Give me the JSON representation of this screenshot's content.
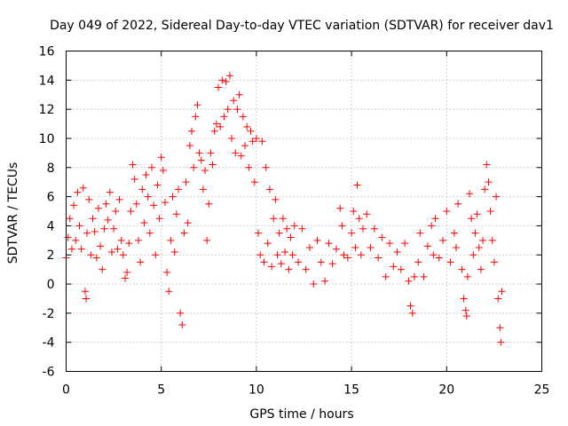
{
  "chart_data": {
    "type": "scatter",
    "title": "Day 049 of 2022, Sidereal Day-to-day VTEC variation (SDTVAR) for receiver dav1",
    "xlabel": "GPS time / hours",
    "ylabel": "SDTVAR / TECUs",
    "xlim": [
      0,
      25
    ],
    "ylim": [
      -6,
      16
    ],
    "xticks": [
      0,
      5,
      10,
      15,
      20,
      25
    ],
    "yticks": [
      -6,
      -4,
      -2,
      0,
      2,
      4,
      6,
      8,
      10,
      12,
      14,
      16
    ],
    "xtick_labels": [
      "0",
      "5",
      "10",
      "15",
      "20",
      "25"
    ],
    "ytick_labels": [
      "-6",
      "-4",
      "-2",
      "0",
      "2",
      "4",
      "6",
      "8",
      "10",
      "12",
      "14",
      "16"
    ],
    "grid": true,
    "marker": "+",
    "color": "#ff0000",
    "series": [
      {
        "name": "SDTVAR",
        "points": [
          [
            0.0,
            1.8
          ],
          [
            0.1,
            3.2
          ],
          [
            0.2,
            4.5
          ],
          [
            0.3,
            2.4
          ],
          [
            0.4,
            5.4
          ],
          [
            0.5,
            3.0
          ],
          [
            0.6,
            6.3
          ],
          [
            0.7,
            4.0
          ],
          [
            0.8,
            2.4
          ],
          [
            0.9,
            6.6
          ],
          [
            1.0,
            -0.5
          ],
          [
            1.05,
            -1.0
          ],
          [
            1.1,
            3.5
          ],
          [
            1.2,
            5.8
          ],
          [
            1.3,
            2.0
          ],
          [
            1.4,
            4.5
          ],
          [
            1.5,
            3.6
          ],
          [
            1.6,
            1.8
          ],
          [
            1.7,
            5.2
          ],
          [
            1.8,
            2.6
          ],
          [
            1.9,
            1.0
          ],
          [
            2.0,
            3.8
          ],
          [
            2.1,
            5.5
          ],
          [
            2.2,
            4.4
          ],
          [
            2.3,
            6.3
          ],
          [
            2.4,
            2.2
          ],
          [
            2.5,
            3.8
          ],
          [
            2.6,
            5.0
          ],
          [
            2.7,
            2.4
          ],
          [
            2.8,
            5.8
          ],
          [
            2.9,
            3.0
          ],
          [
            3.0,
            2.0
          ],
          [
            3.1,
            0.4
          ],
          [
            3.2,
            0.8
          ],
          [
            3.3,
            2.8
          ],
          [
            3.4,
            5.0
          ],
          [
            3.5,
            8.2
          ],
          [
            3.6,
            7.2
          ],
          [
            3.7,
            5.5
          ],
          [
            3.8,
            3.0
          ],
          [
            3.9,
            1.5
          ],
          [
            4.0,
            6.5
          ],
          [
            4.1,
            4.2
          ],
          [
            4.2,
            7.5
          ],
          [
            4.3,
            6.0
          ],
          [
            4.4,
            3.5
          ],
          [
            4.5,
            8.0
          ],
          [
            4.6,
            5.4
          ],
          [
            4.7,
            2.0
          ],
          [
            4.8,
            6.8
          ],
          [
            4.9,
            4.5
          ],
          [
            5.0,
            8.7
          ],
          [
            5.1,
            7.8
          ],
          [
            5.2,
            5.6
          ],
          [
            5.3,
            0.8
          ],
          [
            5.4,
            -0.5
          ],
          [
            5.5,
            3.0
          ],
          [
            5.6,
            6.0
          ],
          [
            5.7,
            2.2
          ],
          [
            5.8,
            4.8
          ],
          [
            5.9,
            6.5
          ],
          [
            6.0,
            -2.0
          ],
          [
            6.1,
            -2.8
          ],
          [
            6.2,
            3.5
          ],
          [
            6.3,
            7.0
          ],
          [
            6.4,
            4.2
          ],
          [
            6.5,
            9.5
          ],
          [
            6.6,
            10.5
          ],
          [
            6.7,
            8.0
          ],
          [
            6.8,
            11.5
          ],
          [
            6.9,
            12.3
          ],
          [
            7.0,
            9.0
          ],
          [
            7.1,
            8.5
          ],
          [
            7.2,
            6.5
          ],
          [
            7.3,
            7.8
          ],
          [
            7.4,
            3.0
          ],
          [
            7.5,
            5.5
          ],
          [
            7.6,
            9.0
          ],
          [
            7.7,
            8.2
          ],
          [
            7.8,
            10.5
          ],
          [
            7.9,
            11.0
          ],
          [
            8.0,
            13.5
          ],
          [
            8.1,
            10.8
          ],
          [
            8.2,
            14.0
          ],
          [
            8.3,
            11.5
          ],
          [
            8.4,
            13.9
          ],
          [
            8.5,
            12.0
          ],
          [
            8.6,
            14.3
          ],
          [
            8.7,
            10.0
          ],
          [
            8.8,
            12.6
          ],
          [
            8.9,
            9.0
          ],
          [
            9.0,
            12.0
          ],
          [
            9.1,
            13.0
          ],
          [
            9.2,
            8.8
          ],
          [
            9.3,
            11.5
          ],
          [
            9.4,
            9.5
          ],
          [
            9.5,
            10.8
          ],
          [
            9.6,
            8.0
          ],
          [
            9.7,
            10.5
          ],
          [
            9.8,
            9.8
          ],
          [
            9.9,
            7.0
          ],
          [
            10.0,
            10.0
          ],
          [
            10.1,
            3.5
          ],
          [
            10.2,
            2.0
          ],
          [
            10.3,
            9.8
          ],
          [
            10.4,
            1.5
          ],
          [
            10.5,
            8.0
          ],
          [
            10.6,
            2.8
          ],
          [
            10.7,
            6.5
          ],
          [
            10.8,
            1.2
          ],
          [
            10.9,
            4.5
          ],
          [
            11.0,
            5.8
          ],
          [
            11.1,
            2.0
          ],
          [
            11.2,
            3.5
          ],
          [
            11.3,
            1.4
          ],
          [
            11.4,
            4.5
          ],
          [
            11.5,
            2.2
          ],
          [
            11.6,
            3.8
          ],
          [
            11.7,
            1.0
          ],
          [
            11.8,
            3.2
          ],
          [
            11.9,
            2.0
          ],
          [
            12.0,
            4.0
          ],
          [
            12.2,
            1.5
          ],
          [
            12.4,
            3.8
          ],
          [
            12.6,
            1.0
          ],
          [
            12.8,
            2.5
          ],
          [
            13.0,
            0.0
          ],
          [
            13.2,
            3.0
          ],
          [
            13.4,
            1.5
          ],
          [
            13.6,
            0.2
          ],
          [
            13.8,
            2.8
          ],
          [
            14.0,
            1.4
          ],
          [
            14.2,
            2.4
          ],
          [
            14.4,
            5.2
          ],
          [
            14.5,
            4.0
          ],
          [
            14.6,
            2.0
          ],
          [
            14.8,
            1.8
          ],
          [
            15.0,
            3.5
          ],
          [
            15.1,
            5.0
          ],
          [
            15.2,
            2.5
          ],
          [
            15.3,
            6.8
          ],
          [
            15.4,
            4.5
          ],
          [
            15.5,
            2.0
          ],
          [
            15.6,
            3.8
          ],
          [
            15.8,
            4.8
          ],
          [
            16.0,
            2.5
          ],
          [
            16.2,
            3.8
          ],
          [
            16.4,
            1.8
          ],
          [
            16.6,
            3.2
          ],
          [
            16.8,
            0.5
          ],
          [
            17.0,
            2.8
          ],
          [
            17.2,
            1.2
          ],
          [
            17.4,
            2.2
          ],
          [
            17.6,
            1.0
          ],
          [
            17.8,
            2.8
          ],
          [
            18.0,
            0.2
          ],
          [
            18.1,
            -1.5
          ],
          [
            18.2,
            -2.0
          ],
          [
            18.3,
            0.5
          ],
          [
            18.5,
            1.5
          ],
          [
            18.6,
            3.5
          ],
          [
            18.8,
            0.5
          ],
          [
            19.0,
            2.6
          ],
          [
            19.2,
            4.0
          ],
          [
            19.3,
            2.0
          ],
          [
            19.4,
            4.5
          ],
          [
            19.6,
            1.8
          ],
          [
            19.8,
            3.0
          ],
          [
            20.0,
            5.0
          ],
          [
            20.2,
            1.5
          ],
          [
            20.4,
            3.5
          ],
          [
            20.5,
            2.5
          ],
          [
            20.6,
            5.5
          ],
          [
            20.8,
            1.0
          ],
          [
            20.9,
            -1.0
          ],
          [
            21.0,
            -1.8
          ],
          [
            21.05,
            -2.2
          ],
          [
            21.1,
            0.5
          ],
          [
            21.2,
            6.2
          ],
          [
            21.3,
            4.5
          ],
          [
            21.4,
            2.0
          ],
          [
            21.5,
            3.5
          ],
          [
            21.6,
            4.8
          ],
          [
            21.7,
            2.5
          ],
          [
            21.8,
            1.0
          ],
          [
            21.9,
            3.0
          ],
          [
            22.0,
            6.5
          ],
          [
            22.1,
            8.2
          ],
          [
            22.2,
            7.0
          ],
          [
            22.3,
            5.0
          ],
          [
            22.4,
            3.0
          ],
          [
            22.5,
            1.5
          ],
          [
            22.6,
            6.0
          ],
          [
            22.7,
            -1.0
          ],
          [
            22.8,
            -3.0
          ],
          [
            22.85,
            -4.0
          ],
          [
            22.9,
            -0.5
          ]
        ]
      }
    ]
  }
}
